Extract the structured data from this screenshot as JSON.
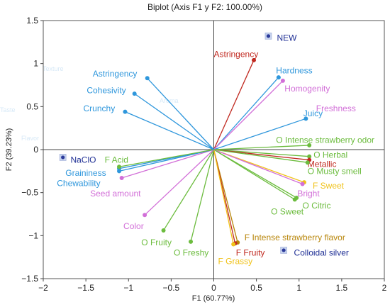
{
  "chart_data": {
    "type": "scatter",
    "title": "Biplot (Axis F1 y F2: 100.00%)",
    "xlabel": "F1 (60.77%)",
    "ylabel": "F2 (39.23%)",
    "xlim": [
      -2,
      2
    ],
    "ylim": [
      -1.5,
      1.5
    ],
    "xticks": [
      "−2",
      "−1.5",
      "−1",
      "−0.5",
      "0",
      "0.5",
      "1",
      "1.5",
      "2"
    ],
    "xtick_values": [
      -2,
      -1.5,
      -1,
      -0.5,
      0,
      0.5,
      1,
      1.5,
      2
    ],
    "yticks": [
      "1.5",
      "1",
      "0.5",
      "0",
      "−0.5",
      "−1",
      "−1.5"
    ],
    "ytick_values": [
      1.5,
      1,
      0.5,
      0,
      -0.5,
      -1,
      -1.5
    ],
    "grid": false,
    "variables": [
      {
        "name": "Astringency",
        "x": 0.47,
        "y": 1.04,
        "color": "#c0281f",
        "label_x": 0.0,
        "label_y": 1.11,
        "anchor": "start"
      },
      {
        "name": "Hardness",
        "x": 0.76,
        "y": 0.84,
        "color": "#2f97dc",
        "label_x": 0.73,
        "label_y": 0.92,
        "anchor": "start"
      },
      {
        "name": "Homogenity",
        "x": 0.81,
        "y": 0.8,
        "color": "#d26fd8",
        "label_x": 0.83,
        "label_y": 0.71,
        "anchor": "start"
      },
      {
        "name": "Juicy",
        "x": 1.08,
        "y": 0.36,
        "color": "#2f97dc",
        "label_x": 1.05,
        "label_y": 0.42,
        "anchor": "start"
      },
      {
        "name": "Freshness",
        "x": 1.1,
        "y": 0.3,
        "color": "#d26fd8",
        "label_x": 1.2,
        "label_y": 0.48,
        "anchor": "start",
        "label_only": true
      },
      {
        "name": "O Intense strawberry odor",
        "x": 1.12,
        "y": 0.05,
        "color": "#6cbc3e",
        "label_x": 0.73,
        "label_y": 0.11,
        "anchor": "start"
      },
      {
        "name": "O Herbal",
        "x": 1.12,
        "y": -0.08,
        "color": "#6cbc3e",
        "label_x": 1.17,
        "label_y": -0.06,
        "anchor": "start"
      },
      {
        "name": "Metallic",
        "x": 1.12,
        "y": -0.12,
        "color": "#c0281f",
        "label_x": 1.1,
        "label_y": -0.17,
        "anchor": "start"
      },
      {
        "name": "O Musty smell",
        "x": 1.1,
        "y": -0.15,
        "color": "#6cbc3e",
        "label_x": 1.1,
        "label_y": -0.25,
        "anchor": "start"
      },
      {
        "name": "F Sweet",
        "x": 1.06,
        "y": -0.38,
        "color": "#f0c219",
        "label_x": 1.16,
        "label_y": -0.42,
        "anchor": "start"
      },
      {
        "name": "Bright",
        "x": 1.04,
        "y": -0.4,
        "color": "#d26fd8",
        "label_x": 0.98,
        "label_y": -0.51,
        "anchor": "start"
      },
      {
        "name": "O Citric",
        "x": 0.97,
        "y": -0.56,
        "color": "#6cbc3e",
        "label_x": 1.04,
        "label_y": -0.65,
        "anchor": "start"
      },
      {
        "name": "O Sweet",
        "x": 0.95,
        "y": -0.58,
        "color": "#6cbc3e",
        "label_x": 0.67,
        "label_y": -0.72,
        "anchor": "start"
      },
      {
        "name": "F Intense strawberry flavor",
        "x": 0.28,
        "y": -1.08,
        "color": "#b8860b",
        "label_x": 0.36,
        "label_y": -1.02,
        "anchor": "start"
      },
      {
        "name": "F Fruity",
        "x": 0.25,
        "y": -1.09,
        "color": "#c0281f",
        "label_x": 0.26,
        "label_y": -1.2,
        "anchor": "start"
      },
      {
        "name": "F Grassy",
        "x": 0.23,
        "y": -1.1,
        "color": "#f0c219",
        "label_x": 0.05,
        "label_y": -1.3,
        "anchor": "start"
      },
      {
        "name": "O Freshy",
        "x": -0.27,
        "y": -1.07,
        "color": "#6cbc3e",
        "label_x": -0.47,
        "label_y": -1.2,
        "anchor": "start"
      },
      {
        "name": "O Fruity",
        "x": -0.59,
        "y": -0.94,
        "color": "#6cbc3e",
        "label_x": -0.85,
        "label_y": -1.08,
        "anchor": "start"
      },
      {
        "name": "Color",
        "x": -0.81,
        "y": -0.76,
        "color": "#d26fd8",
        "label_x": -1.06,
        "label_y": -0.89,
        "anchor": "start"
      },
      {
        "name": "Seed amount",
        "x": -1.08,
        "y": -0.33,
        "color": "#d26fd8",
        "label_x": -1.45,
        "label_y": -0.51,
        "anchor": "start"
      },
      {
        "name": "Chewability",
        "x": -1.11,
        "y": -0.25,
        "color": "#2f97dc",
        "label_x": -1.84,
        "label_y": -0.39,
        "anchor": "start"
      },
      {
        "name": "Graininess",
        "x": -1.11,
        "y": -0.22,
        "color": "#2f97dc",
        "label_x": -1.74,
        "label_y": -0.27,
        "anchor": "start"
      },
      {
        "name": "F Acid",
        "x": -1.11,
        "y": -0.2,
        "color": "#6cbc3e",
        "label_x": -1.28,
        "label_y": -0.12,
        "anchor": "start"
      },
      {
        "name": "Crunchy",
        "x": -1.04,
        "y": 0.44,
        "color": "#2f97dc",
        "label_x": -1.53,
        "label_y": 0.48,
        "anchor": "start"
      },
      {
        "name": "Cohesivity",
        "x": -0.93,
        "y": 0.65,
        "color": "#2f97dc",
        "label_x": -1.49,
        "label_y": 0.69,
        "anchor": "start"
      },
      {
        "name": "Astringency",
        "x": -0.78,
        "y": 0.83,
        "color": "#2f97dc",
        "label_x": -1.42,
        "label_y": 0.88,
        "anchor": "start"
      }
    ],
    "observations": [
      {
        "name": "NEW",
        "x": 0.64,
        "y": 1.32,
        "label_x": 0.74,
        "label_y": 1.3
      },
      {
        "name": "NaClO",
        "x": -1.77,
        "y": -0.09,
        "label_x": -1.68,
        "label_y": -0.12
      },
      {
        "name": "Colloidal silver",
        "x": 0.82,
        "y": -1.17,
        "label_x": 0.94,
        "label_y": -1.2
      }
    ]
  }
}
